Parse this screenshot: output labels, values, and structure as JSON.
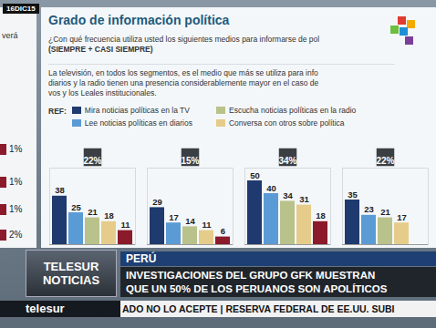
{
  "chart_data": {
    "type": "bar",
    "title": "Grado de información política",
    "subtitle": [
      "¿Con qué frecuencia utiliza usted los siguientes medios para informarse de pol",
      "(SIEMPRE + CASI SIEMPRE)"
    ],
    "annotations": [
      "La televisión, en todos los segmentos, es el medio que más se utiliza para info",
      "diarios y la radio tienen una presencia considerablemente mayor en el caso de",
      "vos y los Leales institucionales."
    ],
    "legend_title": "REF:",
    "legend": "top",
    "categories": [
      null,
      null,
      null,
      null
    ],
    "group_labels": [
      "22%",
      "15%",
      "34%",
      "22%"
    ],
    "series": [
      {
        "name": "Mira noticias políticas en la TV",
        "color": "#1f3a6e",
        "values": [
          38,
          29,
          50,
          35
        ]
      },
      {
        "name": "Lee noticias políticas en diarios",
        "color": "#5b9bd5",
        "values": [
          25,
          17,
          40,
          23
        ]
      },
      {
        "name": "Escucha noticias políticas en la radio",
        "color": "#b9c28a",
        "values": [
          21,
          14,
          34,
          21
        ]
      },
      {
        "name": "Conversa con otros sobre política",
        "color": "#e6cc8a",
        "values": [
          18,
          11,
          31,
          17
        ]
      },
      {
        "name": null,
        "color": "#8b1a2a",
        "values": [
          11,
          6,
          18,
          null
        ]
      }
    ],
    "ylim": [
      0,
      60
    ],
    "tick_labels": false,
    "data_labels": true
  },
  "overlay": {
    "date": "16DIC15",
    "left_panel": {
      "text": "verá",
      "labels": [
        "1%",
        "1%",
        "1%",
        "2%"
      ]
    },
    "logo": [
      "TELESUR",
      "NOTICIAS"
    ],
    "country": "PERÚ",
    "headline": [
      "INVESTIGACIONES DEL GRUPO GFK MUESTRAN",
      "QUE UN 50% DE LOS PERUANOS SON APOLÍTICOS"
    ],
    "channel": "telesur",
    "ticker": "ADO NO LO ACEPTE | RESERVA FEDERAL DE EE.UU. SUBI"
  }
}
